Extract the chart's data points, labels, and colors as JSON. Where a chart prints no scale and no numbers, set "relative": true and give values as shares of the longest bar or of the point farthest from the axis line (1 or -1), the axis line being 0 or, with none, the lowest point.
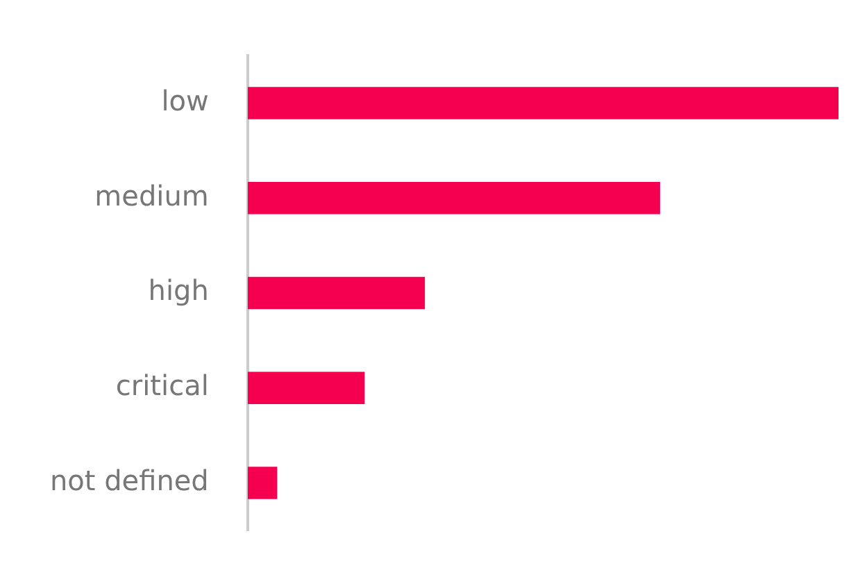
{
  "chart_data": {
    "type": "bar",
    "orientation": "horizontal",
    "relative": true,
    "categories": [
      "low",
      "medium",
      "high",
      "critical",
      "not defined"
    ],
    "values": [
      1,
      0.698,
      0.3,
      0.198,
      0.05
    ],
    "color": "#f50050",
    "grid": false,
    "legend": false
  }
}
